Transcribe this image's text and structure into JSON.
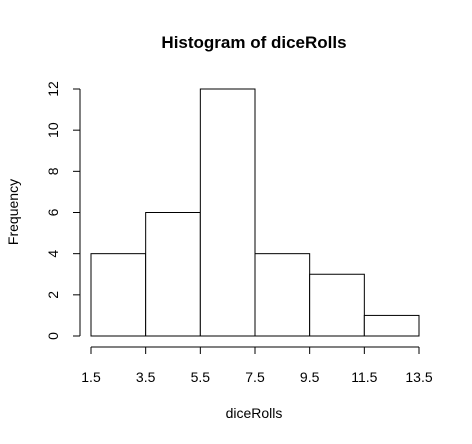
{
  "chart_data": {
    "type": "bar",
    "title": "Histogram of diceRolls",
    "xlabel": "diceRolls",
    "ylabel": "Frequency",
    "bins": [
      {
        "from": 1.5,
        "to": 3.5,
        "count": 4
      },
      {
        "from": 3.5,
        "to": 5.5,
        "count": 6
      },
      {
        "from": 5.5,
        "to": 7.5,
        "count": 12
      },
      {
        "from": 7.5,
        "to": 9.5,
        "count": 4
      },
      {
        "from": 9.5,
        "to": 11.5,
        "count": 3
      },
      {
        "from": 11.5,
        "to": 13.5,
        "count": 1
      }
    ],
    "x_ticks": [
      "1.5",
      "3.5",
      "5.5",
      "7.5",
      "9.5",
      "11.5",
      "13.5"
    ],
    "y_ticks": [
      "0",
      "2",
      "4",
      "6",
      "8",
      "10",
      "12"
    ],
    "xlim": [
      1.5,
      13.5
    ],
    "ylim": [
      0,
      12
    ],
    "bar_fill": "#ffffff",
    "bar_stroke": "#000000",
    "grid": false,
    "legend": "none"
  }
}
